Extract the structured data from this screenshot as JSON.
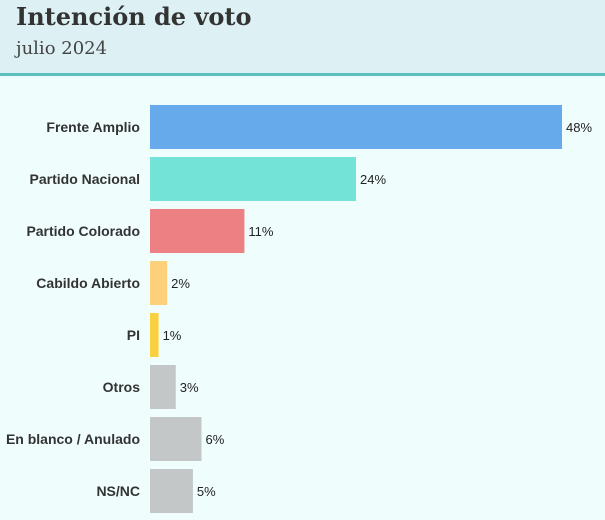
{
  "header": {
    "title": "Intención de voto",
    "subtitle": "julio 2024"
  },
  "chart_data": {
    "type": "bar",
    "orientation": "horizontal",
    "categories": [
      "Frente Amplio",
      "Partido Nacional",
      "Partido Colorado",
      "Cabildo Abierto",
      "PI",
      "Otros",
      "En blanco / Anulado",
      "NS/NC"
    ],
    "values": [
      48,
      24,
      11,
      2,
      1,
      3,
      6,
      5
    ],
    "value_labels": [
      "48%",
      "24%",
      "11%",
      "2%",
      "1%",
      "3%",
      "6%",
      "5%"
    ],
    "colors": [
      "#67aaeb",
      "#72e3d6",
      "#ec8082",
      "#fdd17b",
      "#f9d140",
      "#c3c7c8",
      "#c3c7c8",
      "#c3c7c8"
    ],
    "unit": "%",
    "xlim": [
      0,
      48
    ],
    "grid": false,
    "legend": "none"
  }
}
